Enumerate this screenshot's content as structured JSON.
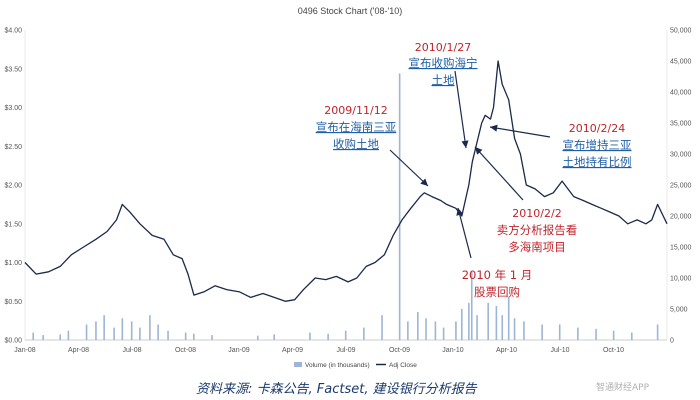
{
  "chart_data": {
    "type": "line",
    "title": "0496 Stock Chart ('08-'10)",
    "x_tick_labels": [
      "Jan-08",
      "Apr-08",
      "Jul-08",
      "Oct-08",
      "Jan-09",
      "Apr-09",
      "Jul-09",
      "Oct-09",
      "Jan-10",
      "Apr-10",
      "Jul-10",
      "Oct-10"
    ],
    "y_left_ticks": [
      "$0.00",
      "$0.50",
      "$1.00",
      "$1.50",
      "$2.00",
      "$2.50",
      "$3.00",
      "$3.50",
      "$4.00"
    ],
    "y_right_ticks": [
      "0",
      "5,000",
      "10,000",
      "15,000",
      "20,000",
      "25,000",
      "30,000",
      "35,000",
      "40,000",
      "45,000",
      "50,000"
    ],
    "ylim_left": [
      0,
      4
    ],
    "ylim_right": [
      0,
      50000
    ],
    "xlim": [
      "2008-01-01",
      "2010-12-31"
    ],
    "legend": [
      "Volume (in thousands)",
      "Adj Close"
    ],
    "legend_position": "bottom-center",
    "series": [
      {
        "name": "Adj Close",
        "axis": "left",
        "color": "#1b2a4a",
        "points": [
          [
            "2008-01-01",
            1.0
          ],
          [
            "2008-01-20",
            0.85
          ],
          [
            "2008-02-10",
            0.88
          ],
          [
            "2008-03-01",
            0.95
          ],
          [
            "2008-03-20",
            1.1
          ],
          [
            "2008-04-10",
            1.2
          ],
          [
            "2008-05-01",
            1.3
          ],
          [
            "2008-05-20",
            1.4
          ],
          [
            "2008-06-05",
            1.55
          ],
          [
            "2008-06-15",
            1.75
          ],
          [
            "2008-06-28",
            1.65
          ],
          [
            "2008-07-15",
            1.5
          ],
          [
            "2008-08-05",
            1.35
          ],
          [
            "2008-08-25",
            1.3
          ],
          [
            "2008-09-10",
            1.1
          ],
          [
            "2008-09-25",
            1.05
          ],
          [
            "2008-10-05",
            0.85
          ],
          [
            "2008-10-15",
            0.58
          ],
          [
            "2008-11-01",
            0.62
          ],
          [
            "2008-11-20",
            0.7
          ],
          [
            "2008-12-10",
            0.65
          ],
          [
            "2009-01-01",
            0.62
          ],
          [
            "2009-01-20",
            0.55
          ],
          [
            "2009-02-10",
            0.6
          ],
          [
            "2009-03-01",
            0.55
          ],
          [
            "2009-03-20",
            0.5
          ],
          [
            "2009-04-05",
            0.52
          ],
          [
            "2009-04-20",
            0.65
          ],
          [
            "2009-05-10",
            0.8
          ],
          [
            "2009-05-28",
            0.78
          ],
          [
            "2009-06-15",
            0.82
          ],
          [
            "2009-07-05",
            0.75
          ],
          [
            "2009-07-20",
            0.8
          ],
          [
            "2009-08-05",
            0.95
          ],
          [
            "2009-08-20",
            1.0
          ],
          [
            "2009-09-05",
            1.1
          ],
          [
            "2009-09-20",
            1.35
          ],
          [
            "2009-10-05",
            1.55
          ],
          [
            "2009-10-20",
            1.7
          ],
          [
            "2009-11-05",
            1.85
          ],
          [
            "2009-11-12",
            1.9
          ],
          [
            "2009-11-25",
            1.85
          ],
          [
            "2009-12-10",
            1.8
          ],
          [
            "2009-12-20",
            1.75
          ],
          [
            "2010-01-05",
            1.7
          ],
          [
            "2010-01-15",
            1.6
          ],
          [
            "2010-01-27",
            2.0
          ],
          [
            "2010-02-02",
            2.3
          ],
          [
            "2010-02-10",
            2.55
          ],
          [
            "2010-02-18",
            2.8
          ],
          [
            "2010-02-24",
            2.9
          ],
          [
            "2010-03-05",
            2.85
          ],
          [
            "2010-03-10",
            3.0
          ],
          [
            "2010-03-18",
            3.6
          ],
          [
            "2010-03-25",
            3.3
          ],
          [
            "2010-04-05",
            3.1
          ],
          [
            "2010-04-15",
            2.6
          ],
          [
            "2010-04-25",
            2.4
          ],
          [
            "2010-05-05",
            2.0
          ],
          [
            "2010-05-20",
            1.95
          ],
          [
            "2010-06-05",
            1.85
          ],
          [
            "2010-06-20",
            1.9
          ],
          [
            "2010-07-05",
            2.05
          ],
          [
            "2010-07-15",
            1.95
          ],
          [
            "2010-07-25",
            1.85
          ],
          [
            "2010-08-10",
            1.8
          ],
          [
            "2010-08-25",
            1.75
          ],
          [
            "2010-09-10",
            1.7
          ],
          [
            "2010-09-25",
            1.65
          ],
          [
            "2010-10-10",
            1.6
          ],
          [
            "2010-10-25",
            1.5
          ],
          [
            "2010-11-10",
            1.55
          ],
          [
            "2010-11-25",
            1.5
          ],
          [
            "2010-12-05",
            1.55
          ],
          [
            "2010-12-15",
            1.75
          ],
          [
            "2010-12-31",
            1.5
          ]
        ]
      },
      {
        "name": "Volume (in thousands)",
        "axis": "right",
        "type": "bar",
        "color": "#9db5d6",
        "points": [
          [
            "2008-01-15",
            1200
          ],
          [
            "2008-02-01",
            800
          ],
          [
            "2008-03-01",
            900
          ],
          [
            "2008-03-15",
            1500
          ],
          [
            "2008-04-15",
            2500
          ],
          [
            "2008-05-01",
            3000
          ],
          [
            "2008-05-15",
            4000
          ],
          [
            "2008-06-01",
            2000
          ],
          [
            "2008-06-15",
            3500
          ],
          [
            "2008-07-01",
            3000
          ],
          [
            "2008-07-15",
            2000
          ],
          [
            "2008-08-01",
            4000
          ],
          [
            "2008-08-15",
            2500
          ],
          [
            "2008-09-01",
            1500
          ],
          [
            "2008-10-01",
            1200
          ],
          [
            "2008-10-15",
            1000
          ],
          [
            "2008-11-15",
            800
          ],
          [
            "2009-02-01",
            700
          ],
          [
            "2009-03-01",
            900
          ],
          [
            "2009-05-01",
            1200
          ],
          [
            "2009-06-01",
            1000
          ],
          [
            "2009-07-01",
            1500
          ],
          [
            "2009-08-01",
            2000
          ],
          [
            "2009-09-01",
            4000
          ],
          [
            "2009-10-01",
            43000
          ],
          [
            "2009-10-15",
            3000
          ],
          [
            "2009-11-01",
            4500
          ],
          [
            "2009-11-15",
            3500
          ],
          [
            "2009-12-01",
            3000
          ],
          [
            "2009-12-15",
            2000
          ],
          [
            "2010-01-05",
            3000
          ],
          [
            "2010-01-15",
            5000
          ],
          [
            "2010-01-27",
            6000
          ],
          [
            "2010-02-01",
            11000
          ],
          [
            "2010-02-10",
            4000
          ],
          [
            "2010-03-01",
            6000
          ],
          [
            "2010-03-15",
            5500
          ],
          [
            "2010-03-25",
            4000
          ],
          [
            "2010-04-05",
            7000
          ],
          [
            "2010-04-15",
            3500
          ],
          [
            "2010-05-01",
            3000
          ],
          [
            "2010-06-01",
            2500
          ],
          [
            "2010-07-01",
            2500
          ],
          [
            "2010-08-01",
            2000
          ],
          [
            "2010-09-01",
            1800
          ],
          [
            "2010-10-01",
            1500
          ],
          [
            "2010-11-01",
            1200
          ],
          [
            "2010-12-15",
            2500
          ]
        ]
      }
    ],
    "annotations": [
      {
        "text_lines": [
          "2010/1/27"
        ],
        "color": "red"
      },
      {
        "text_lines": [
          "宣布收购海宁",
          "土地"
        ],
        "color": "blue"
      },
      {
        "text_lines": [
          "2009/11/12"
        ],
        "color": "red"
      },
      {
        "text_lines": [
          "宣布在海南三亚",
          "收购土地"
        ],
        "color": "blue"
      },
      {
        "text_lines": [
          "2010/2/24"
        ],
        "color": "red"
      },
      {
        "text_lines": [
          "宣布增持三亚",
          "土地持有比例"
        ],
        "color": "blue"
      },
      {
        "text_lines": [
          "2010/2/2",
          "卖方分析报告看",
          "多海南项目"
        ],
        "color": "red"
      },
      {
        "text_lines": [
          "2010 年 1 月",
          "股票回购"
        ],
        "color": "red"
      }
    ]
  },
  "source_text": "资料来源: 卡森公告, Factset, 建设银行分析报告",
  "watermark_text": "智通财经APP",
  "colors": {
    "price_line": "#1b2a4a",
    "volume_bar": "#9db5d6",
    "annotation_blue": "#1f5fa8",
    "annotation_red": "#c0242c",
    "axis_text": "#555555"
  }
}
